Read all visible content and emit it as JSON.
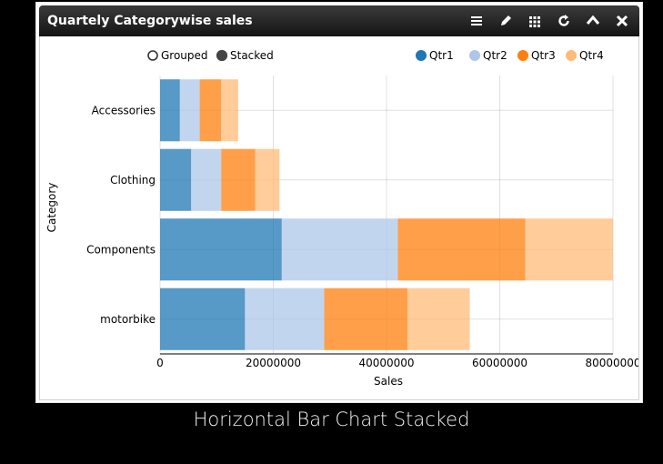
{
  "widget": {
    "title": "Quartely Categorywise sales",
    "toolbar": [
      "menu-icon",
      "pencil-icon",
      "grid-icon",
      "refresh-icon",
      "chevron-up-icon",
      "close-icon"
    ]
  },
  "controls": {
    "grouped_label": "Grouped",
    "stacked_label": "Stacked",
    "selected": "Stacked"
  },
  "caption": "Horizontal Bar Chart Stacked",
  "colors": {
    "Qtr1": "#1f77b4",
    "Qtr2": "#aec7e8",
    "Qtr3": "#ff7f0e",
    "Qtr4": "#ffbb78"
  },
  "chart_data": {
    "type": "bar",
    "orientation": "horizontal",
    "stacked": true,
    "categories": [
      "Accessories",
      "Clothing",
      "Components",
      "motorbike"
    ],
    "series": [
      {
        "name": "Qtr1",
        "values": [
          3500000,
          5500000,
          21500000,
          15000000
        ]
      },
      {
        "name": "Qtr2",
        "values": [
          3500000,
          5300000,
          20500000,
          14000000
        ]
      },
      {
        "name": "Qtr3",
        "values": [
          3800000,
          6000000,
          22500000,
          14700000
        ]
      },
      {
        "name": "Qtr4",
        "values": [
          3000000,
          4300000,
          16000000,
          11000000
        ]
      }
    ],
    "xlabel": "Sales",
    "ylabel": "Category",
    "xlim": [
      0,
      80000000
    ],
    "xticks": [
      "0",
      "20000000",
      "40000000",
      "60000000",
      "80000000"
    ],
    "grid": true,
    "legend_position": "top-right"
  }
}
